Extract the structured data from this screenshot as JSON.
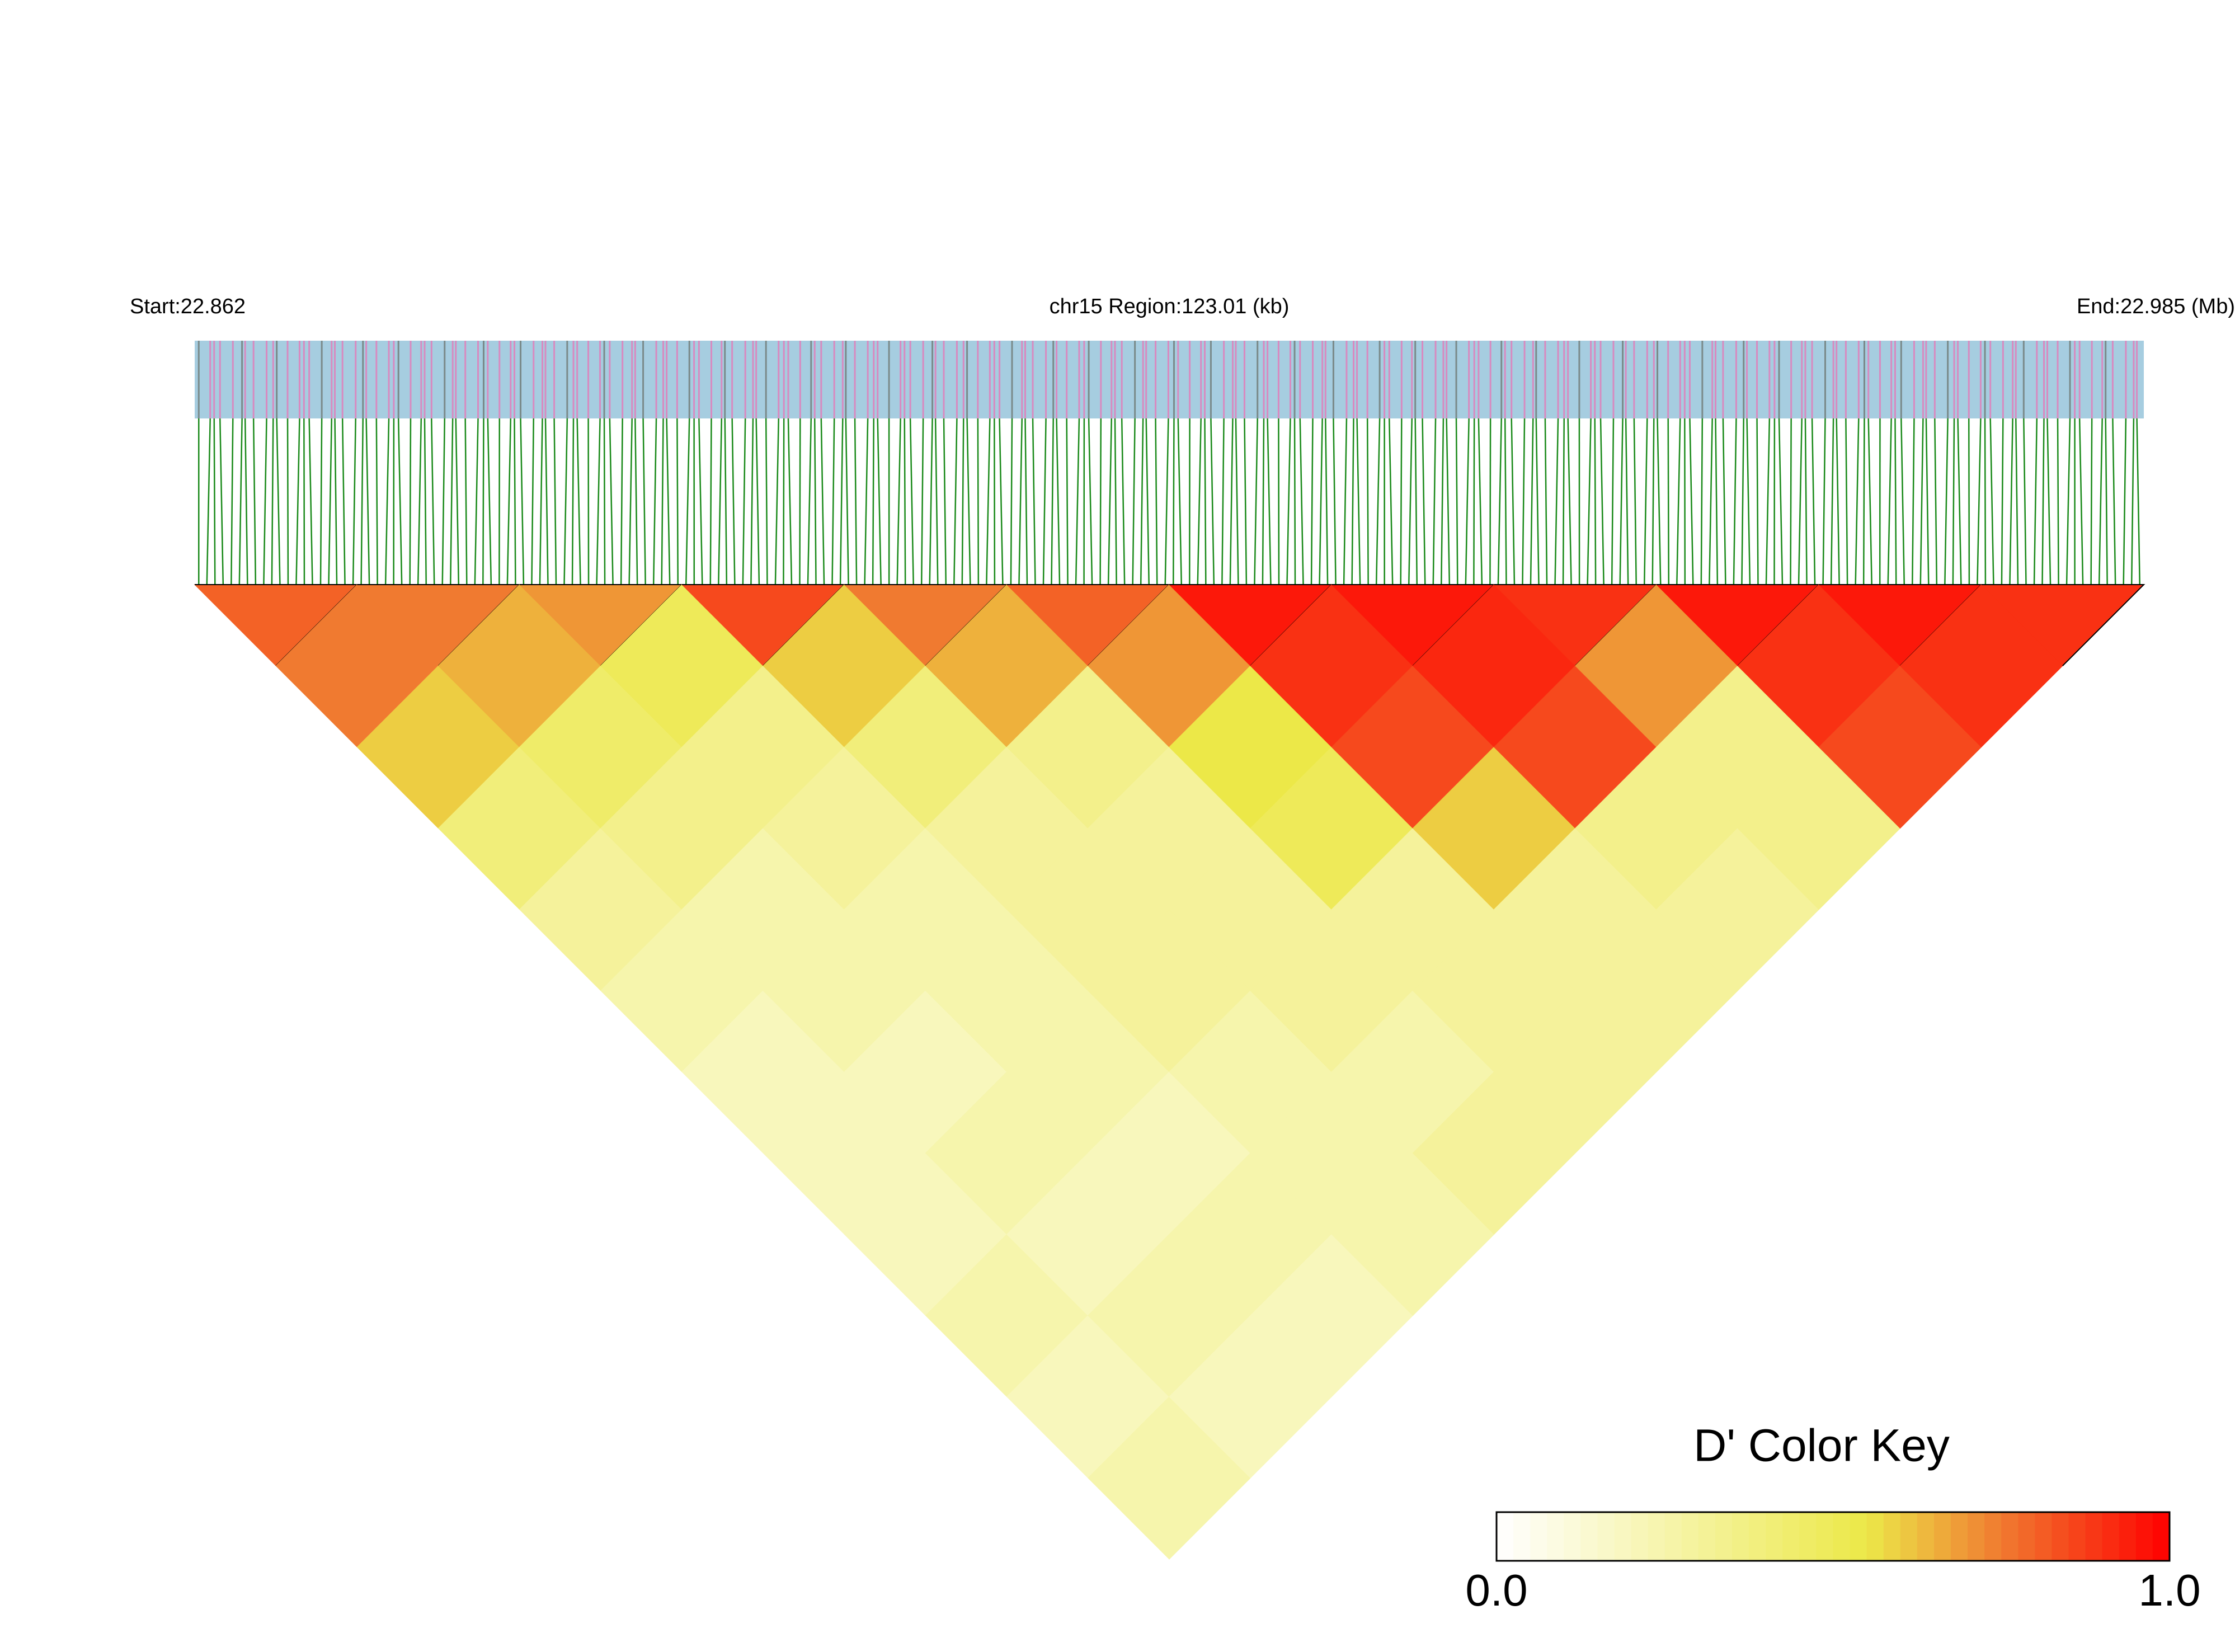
{
  "chart_data": {
    "type": "ld_heatmap",
    "start_label": "Start:22.862",
    "region_label": "chr15 Region:123.01 (kb)",
    "end_label": "End:22.985 (Mb)",
    "ld": [
      [
        0.8,
        0.75,
        0.6,
        0.4,
        0.3,
        0.25,
        0.2,
        0.2,
        0.2,
        0.25,
        0.2,
        0.25
      ],
      [
        0.75,
        0.65,
        0.45,
        0.35,
        0.25,
        0.25,
        0.2,
        0.25,
        0.2,
        0.25,
        0.2
      ],
      [
        0.7,
        0.5,
        0.35,
        0.3,
        0.25,
        0.25,
        0.25,
        0.2,
        0.25,
        0.2
      ],
      [
        0.85,
        0.6,
        0.4,
        0.3,
        0.3,
        0.3,
        0.25,
        0.25,
        0.25
      ],
      [
        0.75,
        0.65,
        0.35,
        0.3,
        0.3,
        0.3,
        0.25,
        0.3
      ],
      [
        0.8,
        0.7,
        0.55,
        0.5,
        0.3,
        0.3,
        0.3
      ],
      [
        0.95,
        0.9,
        0.85,
        0.6,
        0.3,
        0.3
      ],
      [
        0.95,
        0.92,
        0.85,
        0.35,
        0.3
      ],
      [
        0.9,
        0.7,
        0.35,
        0.35
      ],
      [
        0.95,
        0.9,
        0.85
      ],
      [
        0.95,
        0.9
      ],
      [
        0.9
      ]
    ],
    "colorbar": {
      "title": "D' Color Key",
      "lim": [
        0,
        1
      ],
      "ticks": [
        {
          "value": 0,
          "label": "0.0"
        },
        {
          "value": 1,
          "label": "1.0"
        }
      ],
      "stops": [
        {
          "value": 0,
          "color": "#ffffff"
        },
        {
          "value": 0.55,
          "color": "#ece848"
        },
        {
          "value": 0.75,
          "color": "#f07a30"
        },
        {
          "value": 1,
          "color": "#ff0000"
        }
      ]
    }
  }
}
